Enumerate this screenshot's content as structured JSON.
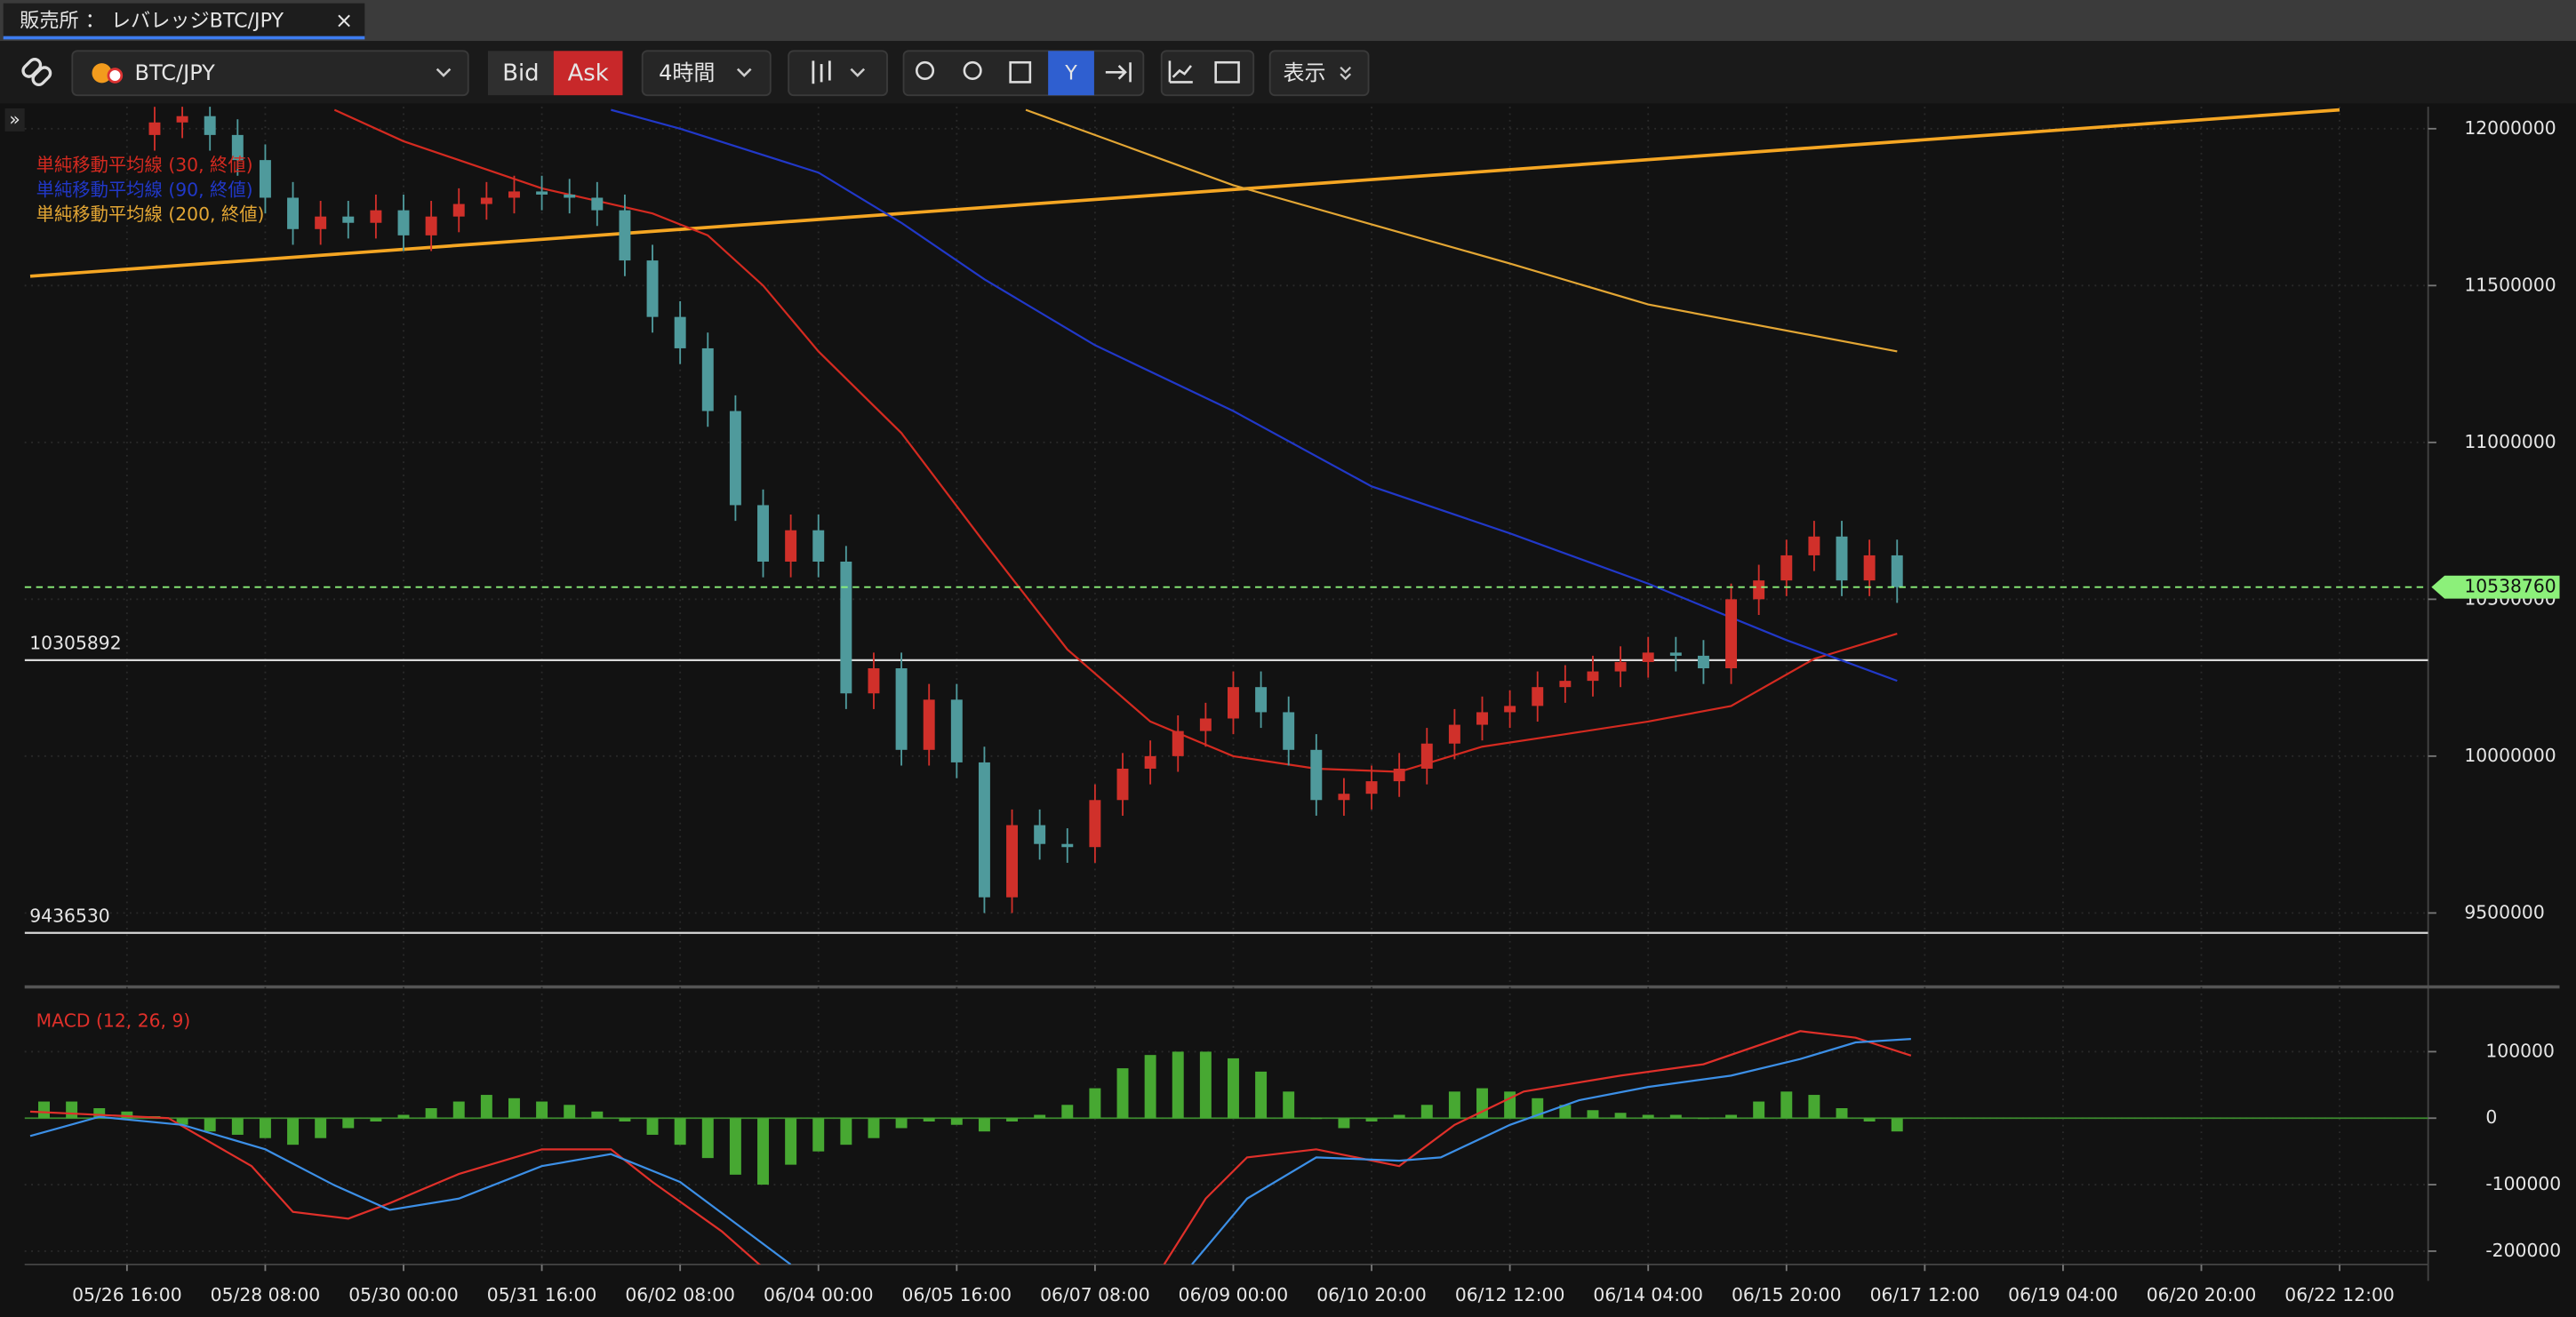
{
  "tab": {
    "title": "販売所 ： レバレッジBTC/JPY"
  },
  "toolbar": {
    "symbol": "BTC/JPY",
    "bid": "Bid",
    "ask": "Ask",
    "interval": "4時間",
    "view": "表示"
  },
  "chart_data": [
    {
      "type": "candlestick",
      "up_color": "#d0302a",
      "down_color": "#4f9a9c",
      "x": [
        2,
        4,
        6,
        8,
        10,
        12,
        14,
        16,
        18,
        20,
        22,
        24,
        26,
        28,
        30,
        32,
        34,
        36,
        38,
        40,
        42,
        44,
        46,
        48,
        50,
        52,
        54,
        56,
        58,
        60,
        62,
        64,
        66,
        68,
        70,
        72,
        74,
        76,
        78,
        80,
        82,
        84,
        86,
        88,
        90,
        92,
        94,
        96,
        98,
        100,
        102,
        104,
        106,
        108,
        110,
        112,
        114,
        116,
        118,
        120,
        122,
        124,
        126,
        128
      ],
      "open": [
        11980000,
        12020000,
        12040000,
        11980000,
        11900000,
        11780000,
        11680000,
        11720000,
        11700000,
        11740000,
        11660000,
        11720000,
        11760000,
        11780000,
        11800000,
        11790000,
        11780000,
        11740000,
        11580000,
        11400000,
        11300000,
        11100000,
        10800000,
        10620000,
        10720000,
        10620000,
        10200000,
        10280000,
        10020000,
        10180000,
        9980000,
        9550000,
        9780000,
        9720000,
        9710000,
        9860000,
        9960000,
        10000000,
        10080000,
        10120000,
        10220000,
        10140000,
        10020000,
        9860000,
        9880000,
        9920000,
        9960000,
        10040000,
        10100000,
        10140000,
        10160000,
        10220000,
        10240000,
        10270000,
        10300000,
        10330000,
        10320000,
        10280000,
        10500000,
        10560000,
        10640000,
        10700000,
        10560000,
        10640000
      ],
      "high": [
        12070000,
        12090000,
        12090000,
        12030000,
        11950000,
        11830000,
        11770000,
        11770000,
        11790000,
        11790000,
        11770000,
        11810000,
        11830000,
        11850000,
        11850000,
        11840000,
        11830000,
        11790000,
        11630000,
        11450000,
        11350000,
        11150000,
        10850000,
        10770000,
        10770000,
        10670000,
        10330000,
        10330000,
        10230000,
        10230000,
        10030000,
        9830000,
        9830000,
        9770000,
        9910000,
        10010000,
        10050000,
        10130000,
        10170000,
        10270000,
        10270000,
        10190000,
        10070000,
        9930000,
        9970000,
        10010000,
        10090000,
        10150000,
        10190000,
        10210000,
        10270000,
        10290000,
        10320000,
        10350000,
        10380000,
        10380000,
        10370000,
        10550000,
        10610000,
        10690000,
        10750000,
        10750000,
        10690000,
        10690000
      ],
      "low": [
        11930000,
        11970000,
        11930000,
        11850000,
        11730000,
        11630000,
        11630000,
        11650000,
        11650000,
        11610000,
        11610000,
        11670000,
        11710000,
        11730000,
        11740000,
        11730000,
        11690000,
        11530000,
        11350000,
        11250000,
        11050000,
        10750000,
        10570000,
        10570000,
        10570000,
        10150000,
        10150000,
        9970000,
        9970000,
        9930000,
        9500000,
        9500000,
        9670000,
        9660000,
        9660000,
        9810000,
        9910000,
        9950000,
        10030000,
        10070000,
        10090000,
        9970000,
        9810000,
        9810000,
        9830000,
        9870000,
        9910000,
        9990000,
        10050000,
        10090000,
        10110000,
        10170000,
        10190000,
        10220000,
        10250000,
        10270000,
        10230000,
        10230000,
        10450000,
        10510000,
        10590000,
        10510000,
        10510000,
        10488760
      ],
      "close": [
        12020000,
        12040000,
        11980000,
        11900000,
        11780000,
        11680000,
        11720000,
        11700000,
        11740000,
        11660000,
        11720000,
        11760000,
        11780000,
        11800000,
        11790000,
        11780000,
        11740000,
        11580000,
        11400000,
        11300000,
        11100000,
        10800000,
        10620000,
        10720000,
        10620000,
        10200000,
        10280000,
        10020000,
        10180000,
        9980000,
        9550000,
        9780000,
        9720000,
        9710000,
        9860000,
        9960000,
        10000000,
        10080000,
        10120000,
        10220000,
        10140000,
        10020000,
        9860000,
        9880000,
        9920000,
        9960000,
        10040000,
        10100000,
        10140000,
        10160000,
        10220000,
        10240000,
        10270000,
        10300000,
        10330000,
        10320000,
        10280000,
        10500000,
        10560000,
        10640000,
        10700000,
        10560000,
        10640000,
        10538760
      ],
      "series": [
        {
          "name": "単純移動平均線 (30, 終値)",
          "color": "#d42a20",
          "x": [
            15,
            20,
            30,
            38,
            42,
            46,
            50,
            56,
            62,
            68,
            74,
            80,
            86,
            92,
            98,
            104,
            110,
            116,
            122,
            128
          ],
          "values": [
            12060000,
            11960000,
            11810000,
            11730000,
            11660000,
            11500000,
            11290000,
            11030000,
            10680000,
            10340000,
            10110000,
            10000000,
            9960000,
            9950000,
            10030000,
            10070000,
            10110000,
            10160000,
            10310000,
            10390000
          ]
        },
        {
          "name": "単純移動平均線 (90, 終値)",
          "color": "#2138c8",
          "x": [
            35,
            40,
            50,
            56,
            62,
            70,
            80,
            90,
            100,
            110,
            120,
            128
          ],
          "values": [
            12060000,
            12000000,
            11860000,
            11700000,
            11520000,
            11310000,
            11100000,
            10860000,
            10710000,
            10550000,
            10370000,
            10240000
          ]
        },
        {
          "name": "単純移動平均線 (200, 終値)",
          "color": "#e3a634",
          "x": [
            65,
            80,
            100,
            110,
            128
          ],
          "values": [
            12060000,
            11820000,
            11570000,
            11440000,
            11290000
          ]
        }
      ],
      "trendline": {
        "color": "#f5a623",
        "x": [
          -7,
          160
        ],
        "values": [
          11530000,
          12060000
        ]
      },
      "hlines": [
        {
          "value": 10305892,
          "color": "#d8d8d8"
        },
        {
          "value": 9436530,
          "color": "#d8d8d8"
        }
      ],
      "last_price": {
        "value": 10538760,
        "color": "#8cf07a"
      },
      "xlim": [
        -7.4,
        166.4
      ],
      "xticks": [
        {
          "value": 0,
          "label": "05/26 16:00"
        },
        {
          "value": 10,
          "label": "05/28 08:00"
        },
        {
          "value": 20,
          "label": "05/30 00:00"
        },
        {
          "value": 30,
          "label": "05/31 16:00"
        },
        {
          "value": 40,
          "label": "06/02 08:00"
        },
        {
          "value": 50,
          "label": "06/04 00:00"
        },
        {
          "value": 60,
          "label": "06/05 16:00"
        },
        {
          "value": 70,
          "label": "06/07 08:00"
        },
        {
          "value": 80,
          "label": "06/09 00:00"
        },
        {
          "value": 90,
          "label": "06/10 20:00"
        },
        {
          "value": 100,
          "label": "06/12 12:00"
        },
        {
          "value": 110,
          "label": "06/14 04:00"
        },
        {
          "value": 120,
          "label": "06/15 20:00"
        },
        {
          "value": 130,
          "label": "06/17 12:00"
        },
        {
          "value": 140,
          "label": "06/19 04:00"
        },
        {
          "value": 150,
          "label": "06/20 20:00"
        },
        {
          "value": 160,
          "label": "06/22 12:00"
        }
      ],
      "ylim": [
        9280000,
        12070000
      ],
      "yticks": [
        9500000,
        10000000,
        10500000,
        11000000,
        11500000,
        12000000
      ],
      "grid": true
    },
    {
      "type": "macd",
      "title": "MACD (12, 26, 9)",
      "histogram": {
        "color": "#47a832",
        "x": [
          -6,
          -4,
          -2,
          0,
          2,
          4,
          6,
          8,
          10,
          12,
          14,
          16,
          18,
          20,
          22,
          24,
          26,
          28,
          30,
          32,
          34,
          36,
          38,
          40,
          42,
          44,
          46,
          48,
          50,
          52,
          54,
          56,
          58,
          60,
          62,
          64,
          66,
          68,
          70,
          72,
          74,
          76,
          78,
          80,
          82,
          84,
          86,
          88,
          90,
          92,
          94,
          96,
          98,
          100,
          102,
          104,
          106,
          108,
          110,
          112,
          114,
          116,
          118,
          120,
          122,
          124,
          126,
          128
        ],
        "values": [
          25000,
          25000,
          15000,
          10000,
          3000,
          -10000,
          -20000,
          -25000,
          -30000,
          -40000,
          -30000,
          -15000,
          -5000,
          5000,
          15000,
          25000,
          35000,
          30000,
          25000,
          20000,
          10000,
          -5000,
          -25000,
          -40000,
          -60000,
          -85000,
          -100000,
          -70000,
          -50000,
          -40000,
          -30000,
          -15000,
          -5000,
          -10000,
          -20000,
          -5000,
          5000,
          20000,
          45000,
          75000,
          95000,
          100000,
          100000,
          90000,
          70000,
          40000,
          0,
          -15000,
          -5000,
          5000,
          20000,
          40000,
          45000,
          40000,
          30000,
          20000,
          12000,
          8000,
          5000,
          5000,
          0,
          5000,
          25000,
          40000,
          35000,
          15000,
          -5000,
          -20000
        ]
      },
      "series": [
        {
          "color": "#e0302a",
          "x": [
            -7,
            3,
            9,
            12,
            16,
            19,
            24,
            30,
            35,
            38,
            43,
            46,
            60,
            75,
            78,
            81,
            86,
            92,
            96,
            101,
            108,
            114,
            121,
            125,
            129
          ],
          "values": [
            10000,
            0,
            -72000,
            -141000,
            -151000,
            -128000,
            -84000,
            -47000,
            -47000,
            -96000,
            -170000,
            -225000,
            null,
            -220000,
            -121000,
            -59000,
            -47000,
            -72000,
            -10000,
            40000,
            64000,
            81000,
            131000,
            121000,
            94000
          ]
        },
        {
          "color": "#3c8fe6",
          "x": [
            -7,
            -2,
            4,
            10,
            15,
            19,
            24,
            30,
            35,
            40,
            44,
            48,
            60,
            77,
            81,
            86,
            92,
            95,
            100,
            105,
            110,
            116,
            121,
            125,
            129
          ],
          "values": [
            -27000,
            2000,
            -10000,
            -47000,
            -101000,
            -138000,
            -121000,
            -72000,
            -54000,
            -96000,
            -158000,
            -220000,
            null,
            -220000,
            -121000,
            -59000,
            -64000,
            -59000,
            -10000,
            27000,
            47000,
            64000,
            89000,
            114000,
            119000
          ]
        }
      ],
      "ylim": [
        -220000,
        185000
      ],
      "yticks": [
        -200000,
        -100000,
        0,
        100000
      ]
    }
  ]
}
